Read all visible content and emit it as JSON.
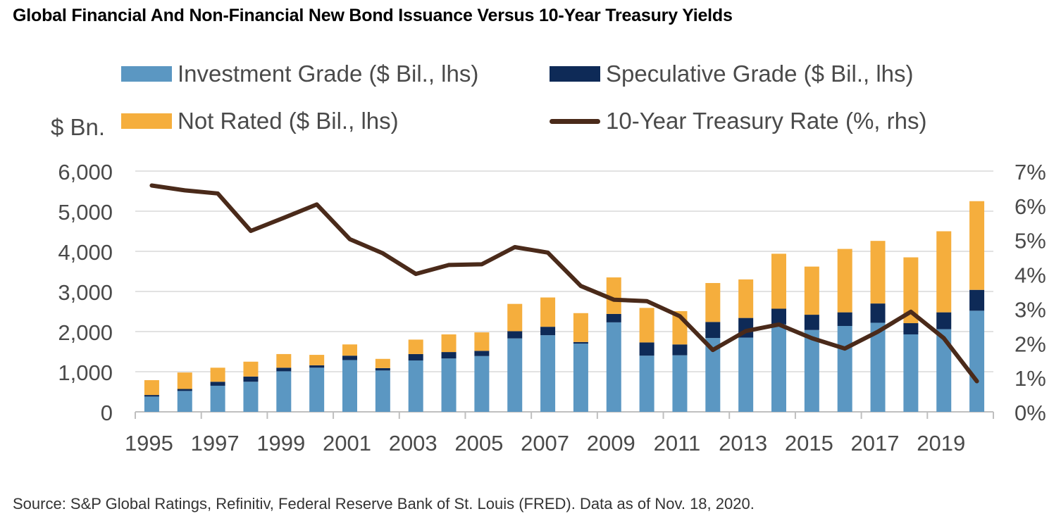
{
  "title": "Global Financial And Non-Financial New Bond Issuance Versus 10-Year Treasury Yields",
  "source": "Source: S&P Global Ratings, Refinitiv, Federal Reserve Bank of St. Louis (FRED). Data as of Nov. 18, 2020.",
  "legend": {
    "ig": "Investment Grade ($ Bil., lhs)",
    "sg": "Speculative Grade ($ Bil., lhs)",
    "nr": "Not Rated ($ Bil., lhs)",
    "rate": "10-Year Treasury Rate (%, rhs)"
  },
  "y_left_unit": "$ Bn.",
  "colors": {
    "ig": "#5b97c2",
    "sg": "#0e2a57",
    "nr": "#f5ae3d",
    "rate": "#4a2a1a",
    "axis": "#bfbfbf",
    "grid": "#d9d9d9"
  },
  "chart_data": {
    "type": "bar",
    "stacked": true,
    "categories": [
      "1995",
      "1996",
      "1997",
      "1998",
      "1999",
      "2000",
      "2001",
      "2002",
      "2003",
      "2004",
      "2005",
      "2006",
      "2007",
      "2008",
      "2009",
      "2010",
      "2011",
      "2012",
      "2013",
      "2014",
      "2015",
      "2016",
      "2017",
      "2018",
      "2019",
      "2020"
    ],
    "x_tick_labels": [
      "1995",
      "1997",
      "1999",
      "2001",
      "2003",
      "2005",
      "2007",
      "2009",
      "2011",
      "2013",
      "2015",
      "2017",
      "2019"
    ],
    "series": [
      {
        "name": "Investment Grade ($ Bil., lhs)",
        "axis": "left",
        "values": [
          380,
          520,
          650,
          750,
          1010,
          1100,
          1290,
          1030,
          1280,
          1330,
          1390,
          1830,
          1910,
          1700,
          2230,
          1400,
          1410,
          1840,
          1850,
          2180,
          2040,
          2140,
          2220,
          1930,
          2060,
          2520
        ]
      },
      {
        "name": "Speculative Grade ($ Bil., lhs)",
        "axis": "left",
        "values": [
          40,
          50,
          100,
          130,
          90,
          60,
          110,
          60,
          160,
          160,
          130,
          180,
          210,
          40,
          210,
          330,
          270,
          400,
          490,
          390,
          380,
          340,
          480,
          280,
          420,
          520
        ]
      },
      {
        "name": "Not Rated ($ Bil., lhs)",
        "axis": "left",
        "values": [
          370,
          410,
          350,
          370,
          340,
          260,
          280,
          230,
          360,
          440,
          460,
          680,
          730,
          720,
          910,
          860,
          830,
          970,
          960,
          1370,
          1200,
          1580,
          1560,
          1640,
          2020,
          2210
        ]
      },
      {
        "name": "10-Year Treasury Rate (%, rhs)",
        "type": "line",
        "axis": "right",
        "values": [
          6.58,
          6.44,
          6.35,
          5.26,
          5.64,
          6.03,
          5.02,
          4.61,
          4.01,
          4.27,
          4.29,
          4.79,
          4.63,
          3.66,
          3.26,
          3.22,
          2.78,
          1.8,
          2.35,
          2.54,
          2.14,
          1.84,
          2.33,
          2.91,
          2.14,
          0.89
        ]
      }
    ],
    "y_left": {
      "ylim": [
        0,
        6000
      ],
      "ticks": [
        "0",
        "1,000",
        "2,000",
        "3,000",
        "4,000",
        "5,000",
        "6,000"
      ]
    },
    "y_right": {
      "ylim": [
        0,
        7
      ],
      "ticks": [
        "0%",
        "1%",
        "2%",
        "3%",
        "4%",
        "5%",
        "6%",
        "7%"
      ]
    },
    "grid": true,
    "legend_position": "top"
  }
}
